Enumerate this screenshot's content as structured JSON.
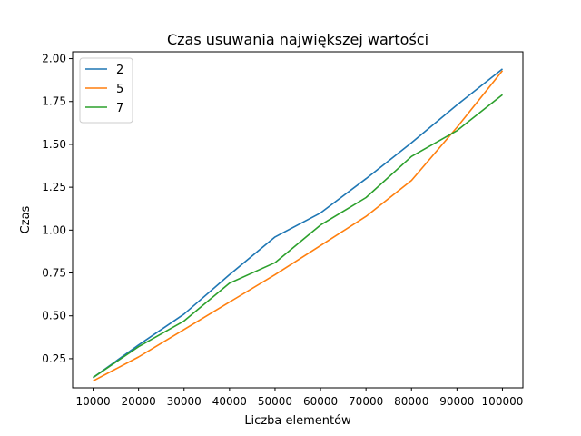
{
  "chart_data": {
    "type": "line",
    "title": "Czas usuwania największej wartości",
    "xlabel": "Liczba elementów",
    "ylabel": "Czas",
    "x": [
      10000,
      20000,
      30000,
      40000,
      50000,
      60000,
      70000,
      80000,
      90000,
      100000
    ],
    "xlim": [
      5500,
      104500
    ],
    "ylim": [
      0.08,
      2.04
    ],
    "yticks": [
      "0.25",
      "0.50",
      "0.75",
      "1.00",
      "1.25",
      "1.50",
      "1.75",
      "2.00"
    ],
    "xticks": [
      "10000",
      "20000",
      "30000",
      "40000",
      "50000",
      "60000",
      "70000",
      "80000",
      "90000",
      "100000"
    ],
    "grid": false,
    "legend_position": "top-left",
    "series": [
      {
        "name": "2",
        "color": "#1f77b4",
        "values": [
          0.14,
          0.33,
          0.51,
          0.74,
          0.96,
          1.1,
          1.3,
          1.51,
          1.73,
          1.94
        ]
      },
      {
        "name": "5",
        "color": "#ff7f0e",
        "values": [
          0.12,
          0.26,
          0.42,
          0.58,
          0.74,
          0.91,
          1.08,
          1.29,
          1.6,
          1.93
        ]
      },
      {
        "name": "7",
        "color": "#2ca02c",
        "values": [
          0.14,
          0.32,
          0.47,
          0.69,
          0.81,
          1.03,
          1.19,
          1.43,
          1.58,
          1.79
        ]
      }
    ]
  }
}
